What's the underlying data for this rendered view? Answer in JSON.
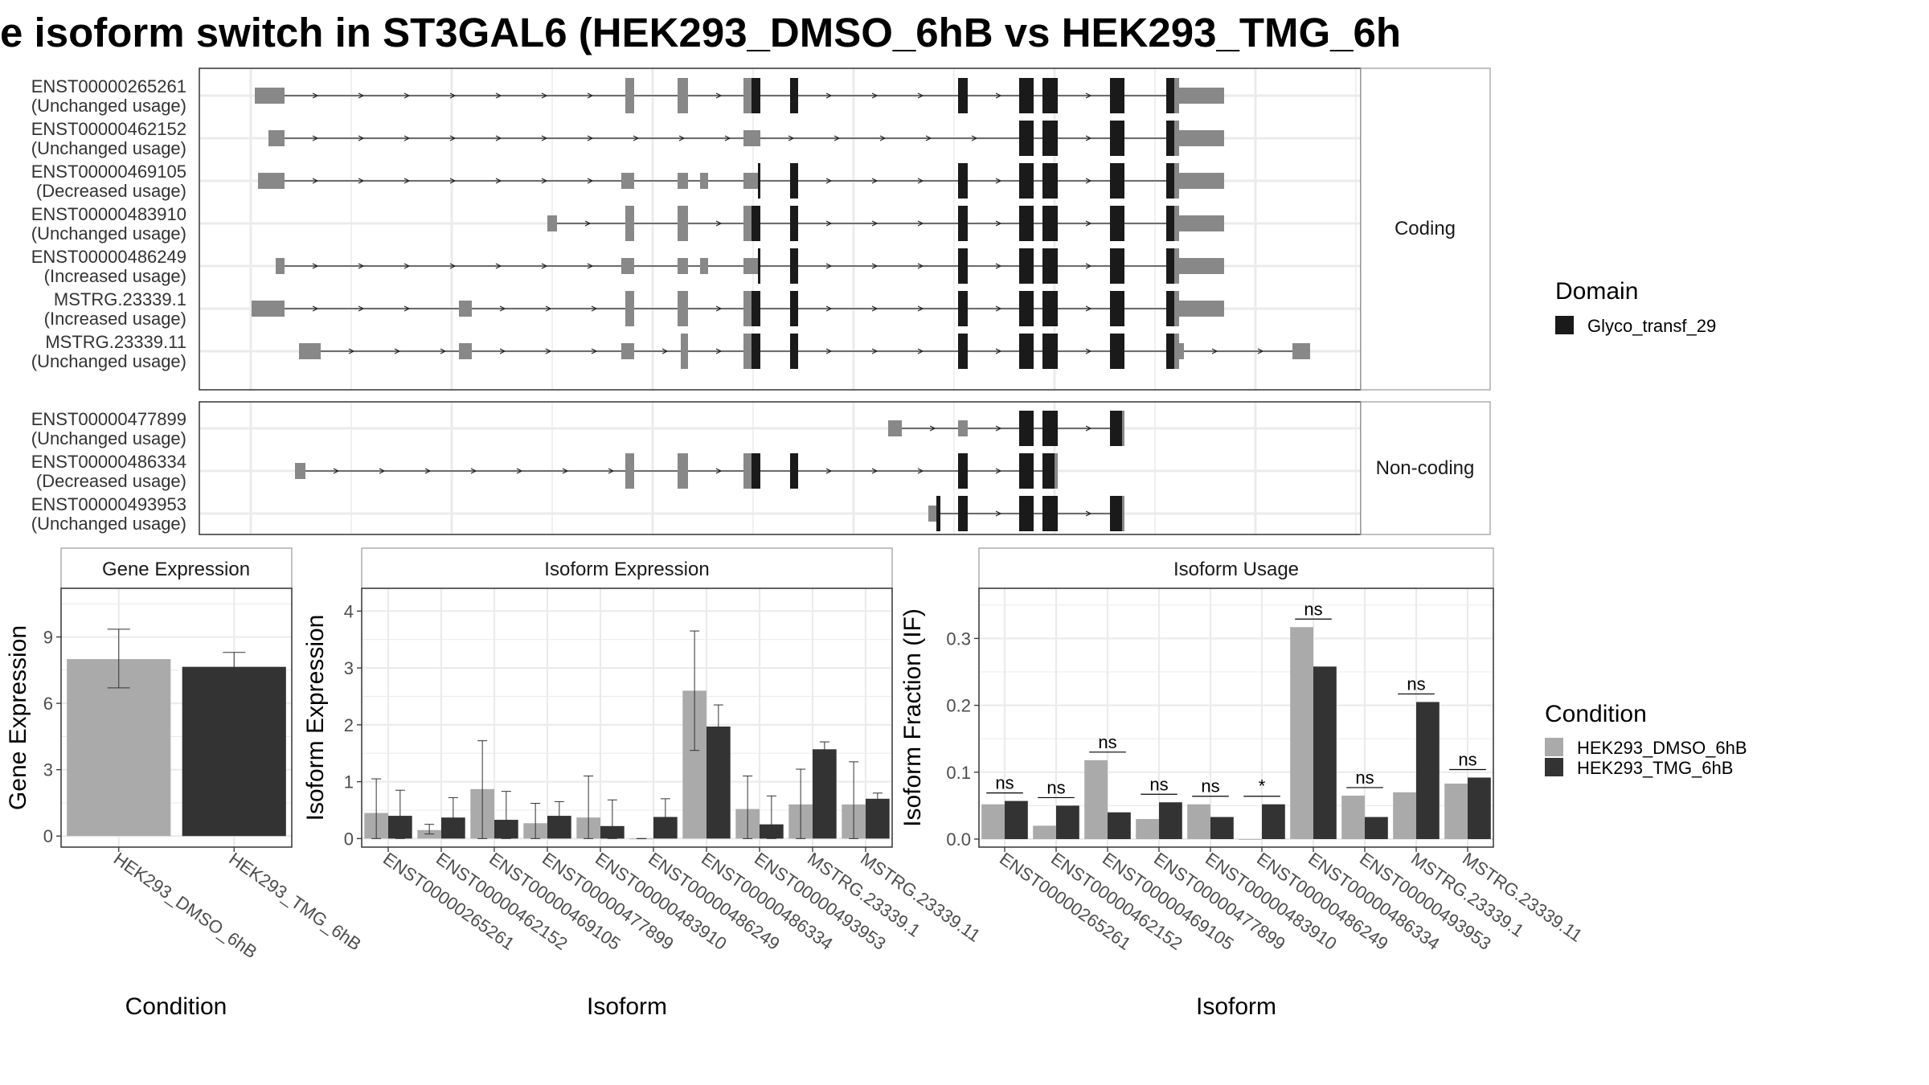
{
  "title": "e isoform switch in ST3GAL6 (HEK293_DMSO_6hB vs HEK293_TMG_6h",
  "colors": {
    "dmso": "#aaaaaa",
    "tmg": "#333333",
    "utr": "#888888",
    "domain": "#1a1a1a",
    "grid": "#ebebeb",
    "panel_border": "#333333",
    "strip_border": "#999999"
  },
  "structure": {
    "facets": [
      "Coding",
      "Non-coding"
    ],
    "coding_labels": [
      {
        "name": "ENST00000265261",
        "usage": "(Unchanged usage)"
      },
      {
        "name": "ENST00000462152",
        "usage": "(Unchanged usage)"
      },
      {
        "name": "ENST00000469105",
        "usage": "(Decreased usage)"
      },
      {
        "name": "ENST00000483910",
        "usage": "(Unchanged usage)"
      },
      {
        "name": "ENST00000486249",
        "usage": "(Increased usage)"
      },
      {
        "name": "MSTRG.23339.1",
        "usage": "(Increased usage)"
      },
      {
        "name": "MSTRG.23339.11",
        "usage": "(Unchanged usage)"
      }
    ],
    "noncoding_labels": [
      {
        "name": "ENST00000477899",
        "usage": "(Unchanged usage)"
      },
      {
        "name": "ENST00000486334",
        "usage": "(Decreased usage)"
      },
      {
        "name": "ENST00000493953",
        "usage": "(Unchanged usage)"
      }
    ]
  },
  "legend_domain": {
    "title": "Domain",
    "items": [
      {
        "label": "Glyco_transf_29",
        "color": "#1a1a1a"
      }
    ]
  },
  "legend_condition": {
    "title": "Condition",
    "items": [
      {
        "label": "HEK293_DMSO_6hB",
        "color": "#aaaaaa"
      },
      {
        "label": "HEK293_TMG_6hB",
        "color": "#333333"
      }
    ]
  },
  "chart_data": [
    {
      "type": "bar",
      "title": "Gene Expression",
      "xlabel": "Condition",
      "ylabel": "Gene Expression",
      "ylim": [
        -0.5,
        11.2
      ],
      "yticks": [
        0,
        3,
        6,
        9
      ],
      "categories": [
        "HEK293_DMSO_6hB",
        "HEK293_TMG_6hB"
      ],
      "values": [
        8.0,
        7.65
      ],
      "errors_low": [
        6.7,
        7.05
      ],
      "errors_high": [
        9.35,
        8.3
      ],
      "grid": true
    },
    {
      "type": "bar",
      "title": "Isoform Expression",
      "xlabel": "Isoform",
      "ylabel": "Isoform Expression",
      "ylim": [
        -0.15,
        4.4
      ],
      "yticks": [
        0,
        1,
        2,
        3,
        4
      ],
      "categories": [
        "ENST00000265261",
        "ENST00000462152",
        "ENST00000469105",
        "ENST00000477899",
        "ENST00000483910",
        "ENST00000486249",
        "ENST00000486334",
        "ENST00000493953",
        "MSTRG.23339.1",
        "MSTRG.23339.11"
      ],
      "series": [
        {
          "name": "HEK293_DMSO_6hB",
          "values": [
            0.45,
            0.15,
            0.87,
            0.27,
            0.37,
            0.0,
            2.6,
            0.52,
            0.6,
            0.6
          ],
          "err_low": [
            0.0,
            0.08,
            0.0,
            0.0,
            0.0,
            0.0,
            1.55,
            0.0,
            0.0,
            0.0
          ],
          "err_high": [
            1.05,
            0.25,
            1.72,
            0.62,
            1.1,
            0.0,
            3.65,
            1.1,
            1.22,
            1.35
          ]
        },
        {
          "name": "HEK293_TMG_6hB",
          "values": [
            0.4,
            0.37,
            0.33,
            0.4,
            0.22,
            0.38,
            1.97,
            0.25,
            1.57,
            0.7
          ],
          "err_low": [
            0.0,
            0.05,
            0.0,
            0.15,
            0.0,
            0.1,
            1.6,
            0.0,
            1.45,
            0.6
          ],
          "err_high": [
            0.85,
            0.72,
            0.83,
            0.65,
            0.68,
            0.7,
            2.35,
            0.75,
            1.7,
            0.8
          ]
        }
      ],
      "grid": true
    },
    {
      "type": "bar",
      "title": "Isoform Usage",
      "xlabel": "Isoform",
      "ylabel": "Isoform Fraction (IF)",
      "ylim": [
        -0.012,
        0.375
      ],
      "yticks": [
        0.0,
        0.1,
        0.2,
        0.3
      ],
      "ytick_labels": [
        "0.0",
        "0.1",
        "0.2",
        "0.3"
      ],
      "categories": [
        "ENST00000265261",
        "ENST00000462152",
        "ENST00000469105",
        "ENST00000477899",
        "ENST00000483910",
        "ENST00000486249",
        "ENST00000486334",
        "ENST00000493953",
        "MSTRG.23339.1",
        "MSTRG.23339.11"
      ],
      "series": [
        {
          "name": "HEK293_DMSO_6hB",
          "values": [
            0.052,
            0.02,
            0.118,
            0.03,
            0.052,
            0.0,
            0.317,
            0.065,
            0.07,
            0.083
          ]
        },
        {
          "name": "HEK293_TMG_6hB",
          "values": [
            0.057,
            0.05,
            0.04,
            0.055,
            0.033,
            0.052,
            0.258,
            0.033,
            0.205,
            0.092
          ]
        }
      ],
      "significance": [
        "ns",
        "ns",
        "ns",
        "ns",
        "ns",
        "*",
        "ns",
        "ns",
        "ns",
        "ns"
      ],
      "grid": true
    }
  ]
}
